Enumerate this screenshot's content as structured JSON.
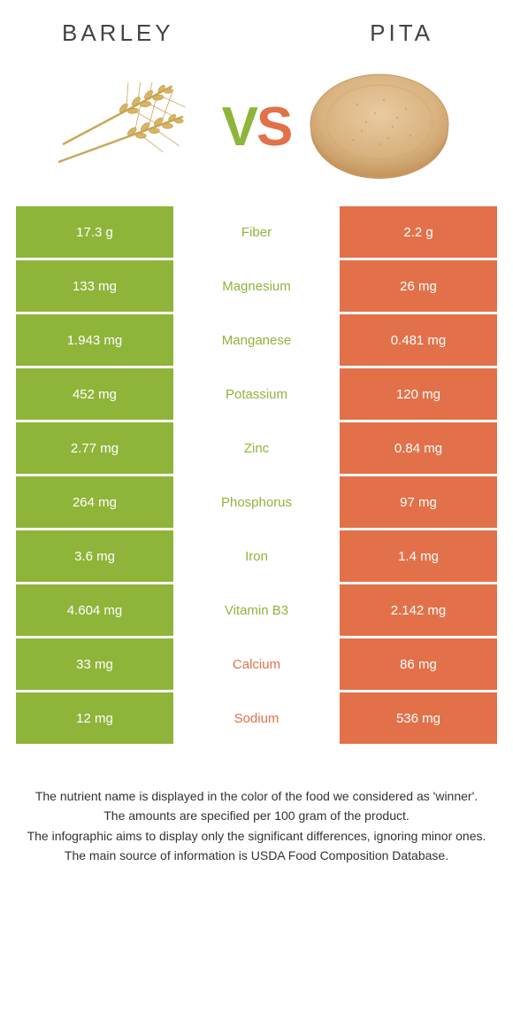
{
  "colors": {
    "barley": "#8fb43a",
    "pita": "#e2714a",
    "mid_bg": "#ffffff",
    "white": "#ffffff"
  },
  "foods": {
    "left": {
      "title": "BARLEY"
    },
    "right": {
      "title": "PITA"
    }
  },
  "vs": {
    "v": "V",
    "s": "S"
  },
  "nutrients": [
    {
      "label": "Fiber",
      "left": "17.3 g",
      "right": "2.2 g",
      "winner": "left"
    },
    {
      "label": "Magnesium",
      "left": "133 mg",
      "right": "26 mg",
      "winner": "left"
    },
    {
      "label": "Manganese",
      "left": "1.943 mg",
      "right": "0.481 mg",
      "winner": "left"
    },
    {
      "label": "Potassium",
      "left": "452 mg",
      "right": "120 mg",
      "winner": "left"
    },
    {
      "label": "Zinc",
      "left": "2.77 mg",
      "right": "0.84 mg",
      "winner": "left"
    },
    {
      "label": "Phosphorus",
      "left": "264 mg",
      "right": "97 mg",
      "winner": "left"
    },
    {
      "label": "Iron",
      "left": "3.6 mg",
      "right": "1.4 mg",
      "winner": "left"
    },
    {
      "label": "Vitamin B3",
      "left": "4.604 mg",
      "right": "2.142 mg",
      "winner": "left"
    },
    {
      "label": "Calcium",
      "left": "33 mg",
      "right": "86 mg",
      "winner": "right"
    },
    {
      "label": "Sodium",
      "left": "12 mg",
      "right": "536 mg",
      "winner": "right"
    }
  ],
  "footnotes": [
    "The nutrient name is displayed in the color of the food we considered as 'winner'.",
    "The amounts are specified per 100 gram of the product.",
    "The infographic aims to display only the significant differences, ignoring minor ones.",
    "The main source of information is USDA Food Composition Database."
  ]
}
